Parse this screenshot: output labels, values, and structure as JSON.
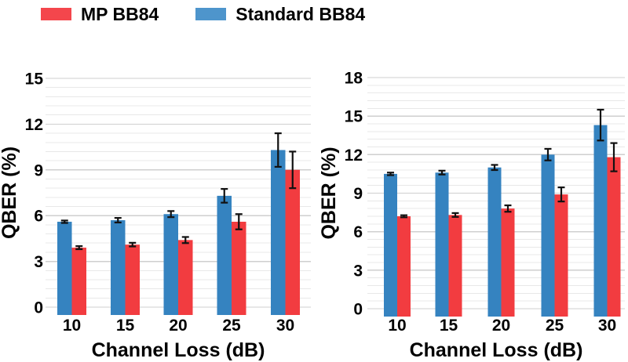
{
  "legend": {
    "items": [
      {
        "label": "MP BB84",
        "color": "#f4464c",
        "series_key": "MP BB84"
      },
      {
        "label": "Standard BB84",
        "color": "#4e95cc",
        "series_key": "Standard BB84"
      }
    ]
  },
  "colors": {
    "standard_bb84_blue": "#3583c0",
    "mp_bb84_red": "#f23c40",
    "major_gridline": "#cfcfcf",
    "minor_gridline": "#e8e8e8",
    "error_bar": "#111111",
    "text": "#000000",
    "background": "#ffffff"
  },
  "chart_data": [
    {
      "id": "left-chart",
      "type": "bar",
      "title": "",
      "xlabel": "Channel Loss (dB)",
      "ylabel": "QBER (%)",
      "categories": [
        "10",
        "15",
        "20",
        "25",
        "30"
      ],
      "ylim": [
        0,
        15
      ],
      "y_major_step": 3,
      "y_minor_step": 0.6,
      "grid": true,
      "legend_position": "above-figure",
      "series": [
        {
          "name": "Standard BB84",
          "color_key": "standard_bb84_blue",
          "values": [
            5.6,
            5.7,
            6.1,
            7.3,
            10.3
          ],
          "errors": [
            0.08,
            0.15,
            0.2,
            0.45,
            1.1
          ]
        },
        {
          "name": "MP BB84",
          "color_key": "mp_bb84_red",
          "values": [
            3.9,
            4.1,
            4.4,
            5.6,
            9.0
          ],
          "errors": [
            0.1,
            0.12,
            0.2,
            0.5,
            1.2
          ]
        }
      ]
    },
    {
      "id": "right-chart",
      "type": "bar",
      "title": "",
      "xlabel": "Channel Loss (dB)",
      "ylabel": "QBER (%)",
      "categories": [
        "10",
        "15",
        "20",
        "25",
        "30"
      ],
      "ylim": [
        0,
        18
      ],
      "y_major_step": 3,
      "y_minor_step": 0.6,
      "grid": true,
      "legend_position": "above-figure",
      "series": [
        {
          "name": "Standard BB84",
          "color_key": "standard_bb84_blue",
          "values": [
            10.5,
            10.6,
            11.0,
            12.0,
            14.3
          ],
          "errors": [
            0.1,
            0.15,
            0.2,
            0.45,
            1.2
          ]
        },
        {
          "name": "MP BB84",
          "color_key": "mp_bb84_red",
          "values": [
            7.2,
            7.3,
            7.8,
            8.9,
            11.8
          ],
          "errors": [
            0.08,
            0.15,
            0.25,
            0.55,
            1.1
          ]
        }
      ]
    }
  ]
}
